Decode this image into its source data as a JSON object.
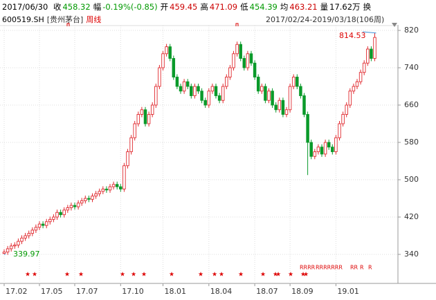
{
  "header": {
    "date": "2017/06/30",
    "items": [
      {
        "label": "收",
        "value": "458.32",
        "color": "#009900"
      },
      {
        "label": "幅",
        "value": "-0.19%(-0.85)",
        "color": "#009900"
      },
      {
        "label": "开",
        "value": "459.45",
        "color": "#cc0000"
      },
      {
        "label": "高",
        "value": "471.09",
        "color": "#cc0000"
      },
      {
        "label": "低",
        "value": "454.39",
        "color": "#009900"
      },
      {
        "label": "均",
        "value": "463.21",
        "color": "#cc0000"
      },
      {
        "label": "量",
        "value": "17.62万",
        "color": "#000000"
      }
    ],
    "tail": "换",
    "code": "600519.SH",
    "name": "[贵州茅台]",
    "period": "周线",
    "range": "2017/02/24-2019/03/18(106周)"
  },
  "chart_data": {
    "type": "candlestick",
    "up_color": "#e0282e",
    "down_color": "#0a9a2a",
    "categories": [
      "17.02",
      null,
      null,
      null,
      null,
      null,
      null,
      null,
      null,
      null,
      "17.05",
      null,
      null,
      null,
      null,
      null,
      null,
      null,
      null,
      null,
      "17.07",
      null,
      null,
      null,
      null,
      null,
      null,
      null,
      null,
      null,
      null,
      null,
      null,
      "17.10",
      null,
      null,
      null,
      null,
      null,
      null,
      null,
      null,
      null,
      null,
      null,
      "18.01",
      null,
      null,
      null,
      null,
      null,
      null,
      null,
      null,
      null,
      null,
      null,
      null,
      "18.04",
      null,
      null,
      null,
      null,
      null,
      null,
      null,
      null,
      null,
      null,
      null,
      null,
      "18.07",
      null,
      null,
      null,
      null,
      null,
      null,
      null,
      null,
      null,
      "18.09",
      null,
      null,
      null,
      null,
      null,
      null,
      null,
      null,
      null,
      null,
      null,
      null,
      "19.01",
      null,
      null,
      null,
      null,
      null,
      null,
      null,
      null,
      null,
      null,
      null
    ],
    "open": [
      342,
      345,
      352,
      358,
      360,
      368,
      375,
      380,
      385,
      392,
      398,
      405,
      402,
      410,
      415,
      420,
      430,
      425,
      435,
      440,
      445,
      442,
      450,
      455,
      460,
      458,
      465,
      470,
      475,
      480,
      478,
      485,
      490,
      485,
      480,
      530,
      560,
      590,
      620,
      640,
      650,
      620,
      640,
      660,
      700,
      740,
      770,
      785,
      760,
      720,
      700,
      690,
      710,
      700,
      680,
      700,
      690,
      670,
      660,
      690,
      700,
      680,
      670,
      700,
      720,
      740,
      770,
      790,
      760,
      740,
      770,
      750,
      720,
      690,
      700,
      670,
      690,
      660,
      650,
      670,
      640,
      650,
      700,
      720,
      700,
      680,
      640,
      580,
      550,
      560,
      570,
      555,
      580,
      570,
      560,
      590,
      620,
      640,
      660,
      690,
      700,
      710,
      730,
      750,
      780,
      760
    ],
    "close": [
      345,
      352,
      358,
      360,
      368,
      375,
      380,
      385,
      392,
      398,
      405,
      402,
      410,
      415,
      420,
      430,
      425,
      435,
      440,
      445,
      442,
      450,
      455,
      460,
      458,
      465,
      470,
      475,
      480,
      478,
      485,
      490,
      485,
      480,
      530,
      560,
      590,
      620,
      640,
      650,
      620,
      640,
      660,
      700,
      740,
      770,
      785,
      760,
      720,
      700,
      690,
      710,
      700,
      680,
      700,
      690,
      670,
      660,
      690,
      700,
      680,
      670,
      700,
      720,
      740,
      770,
      790,
      760,
      740,
      770,
      750,
      720,
      690,
      700,
      670,
      690,
      660,
      650,
      670,
      640,
      650,
      700,
      720,
      700,
      680,
      640,
      580,
      550,
      560,
      570,
      555,
      580,
      570,
      560,
      590,
      620,
      640,
      660,
      690,
      700,
      710,
      730,
      750,
      780,
      760,
      805
    ],
    "high": [
      351,
      358,
      364,
      366,
      374,
      381,
      386,
      391,
      398,
      404,
      411,
      411,
      416,
      421,
      426,
      436,
      436,
      441,
      446,
      451,
      451,
      456,
      461,
      466,
      466,
      471,
      476,
      481,
      486,
      486,
      491,
      496,
      496,
      491,
      536,
      566,
      596,
      626,
      646,
      656,
      656,
      646,
      666,
      706,
      746,
      776,
      791,
      791,
      766,
      726,
      706,
      716,
      716,
      706,
      706,
      706,
      696,
      676,
      696,
      706,
      706,
      686,
      706,
      726,
      746,
      776,
      796,
      796,
      766,
      776,
      776,
      756,
      726,
      706,
      706,
      696,
      696,
      666,
      676,
      676,
      656,
      706,
      726,
      726,
      706,
      686,
      646,
      586,
      566,
      576,
      576,
      586,
      586,
      576,
      596,
      626,
      646,
      666,
      696,
      706,
      716,
      736,
      756,
      786,
      786,
      814.53
    ],
    "low": [
      339.97,
      339,
      346,
      352,
      354,
      362,
      369,
      374,
      379,
      386,
      392,
      396,
      396,
      404,
      409,
      414,
      419,
      419,
      429,
      434,
      436,
      436,
      444,
      449,
      452,
      452,
      459,
      464,
      469,
      472,
      472,
      479,
      479,
      474,
      474,
      524,
      554,
      584,
      614,
      634,
      614,
      614,
      634,
      654,
      694,
      734,
      764,
      754,
      714,
      694,
      684,
      684,
      694,
      674,
      674,
      684,
      664,
      654,
      654,
      684,
      674,
      664,
      664,
      694,
      714,
      734,
      764,
      754,
      734,
      734,
      744,
      714,
      684,
      684,
      664,
      664,
      654,
      644,
      644,
      634,
      634,
      644,
      694,
      694,
      674,
      634,
      510,
      544,
      544,
      554,
      549,
      549,
      564,
      554,
      554,
      584,
      614,
      634,
      654,
      684,
      694,
      704,
      724,
      744,
      754,
      754
    ],
    "ylim": [
      300,
      840
    ],
    "yticks": [
      340,
      420,
      500,
      580,
      660,
      740,
      820
    ],
    "grid": true,
    "r_marks": [
      "RRRR",
      "RRRRRRR",
      "RR",
      "R",
      "R"
    ]
  }
}
